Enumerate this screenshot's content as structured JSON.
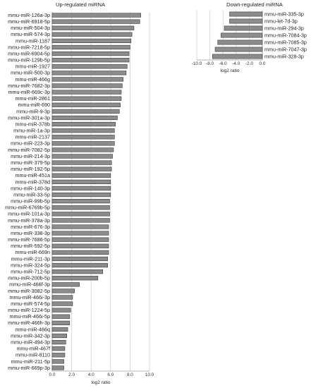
{
  "chart_data": [
    {
      "type": "bar",
      "orientation": "horizontal",
      "title": "Up-regulated miRNA",
      "xlabel": "log2 ratio",
      "xlim": [
        0,
        10
      ],
      "xticks": [
        "0.0",
        "2.0",
        "4.0",
        "6.0",
        "8.0",
        "10.0"
      ],
      "grid": true,
      "categories": [
        "mmu-miR-126a-3p",
        "mmu-miR-6918-5p",
        "mmu-miR-504-3p",
        "mmu-miR-574-3p",
        "mmu-miR-1187",
        "mmu-miR-7218-5p",
        "mmu-miR-6904-5p",
        "mmu-miR-129b-5p",
        "mmu-miR-1927",
        "mmu-miR-500-3p",
        "mmu-miR-466g",
        "mmu-miR-7682-3p",
        "mmu-miR-669c-3p",
        "mmu-miR-2861",
        "mmu-miR-690",
        "mmu-miR-9-3p",
        "mmu-miR-301a-3p",
        "mmu-miR-378b",
        "mmu-miR-1a-3p",
        "mmu-miR-2137",
        "mmu-miR-223-3p",
        "mmu-miR-7082-5p",
        "mmu-miR-214-3p",
        "mmu-miR-379-5p",
        "mmu-miR-192-5p",
        "mmu-miR-451a",
        "mmu-miR-378d",
        "mmu-miR-140-3p",
        "mmu-miR-33-5p",
        "mmu-miR-99b-5p",
        "mmu-miR-6769b-5p",
        "mmu-miR-101a-3p",
        "mmu-miR-378a-3p",
        "mmu-miR-676-3p",
        "mmu-miR-338-3p",
        "mmu-miR-7686-5p",
        "mmu-miR-592-5p",
        "mmu-miR-669n",
        "mmu-miR-211-3p",
        "mmu-miR-324-5p",
        "mmu-miR-712-5p",
        "mmu-miR-200b-5p",
        "mmu-miR-466f-3p",
        "mmu-miR-3082-5p",
        "mmu-miR-466i-3p",
        "mmu-miR-574-5p",
        "mmu-miR-1224-5p",
        "mmu-miR-466i-5p",
        "mmu-miR-466h-3p",
        "mmu-miR-466q",
        "mmu-miR-342-3p",
        "mmu-miR-494-3p",
        "mmu-miR-467f",
        "mmu-miR-8110",
        "mmu-miR-211-5p",
        "mmu-miR-669p-3p"
      ],
      "values": [
        9.1,
        9.0,
        8.4,
        8.2,
        8.1,
        8.0,
        7.9,
        7.9,
        7.7,
        7.6,
        7.3,
        7.2,
        7.1,
        7.1,
        7.0,
        6.9,
        6.7,
        6.5,
        6.4,
        6.4,
        6.4,
        6.3,
        6.2,
        6.1,
        6.1,
        6.0,
        6.0,
        6.0,
        6.0,
        5.9,
        5.9,
        5.9,
        5.9,
        5.8,
        5.8,
        5.8,
        5.8,
        5.8,
        5.7,
        5.7,
        5.2,
        4.7,
        2.8,
        2.3,
        2.1,
        2.1,
        1.9,
        1.8,
        1.8,
        1.6,
        1.5,
        1.4,
        1.3,
        1.3,
        1.2,
        1.2
      ]
    },
    {
      "type": "bar",
      "orientation": "horizontal",
      "title": "Down-regulated miRNA",
      "xlabel": "log2 ratio",
      "xlim": [
        -10,
        0
      ],
      "xticks": [
        "-10.0",
        "-8.0",
        "-6.0",
        "-4.0",
        "-2.0",
        "0.0"
      ],
      "grid": true,
      "categories": [
        "mmu-miR-335-3p",
        "mmu-let-7d-3p",
        "mmu-miR-294-3p",
        "mmu-miR-7084-3p",
        "mmu-miR-7085-3p",
        "mmu-miR-7047-3p",
        "mmu-miR-328-3p"
      ],
      "values": [
        -5.0,
        -5.0,
        -5.8,
        -6.3,
        -6.8,
        -7.2,
        -7.6
      ]
    }
  ],
  "colors": {
    "bar_fill": "#8c8c8c",
    "bar_edge": "#3a3a3a",
    "grid": "#d0d0d0"
  }
}
